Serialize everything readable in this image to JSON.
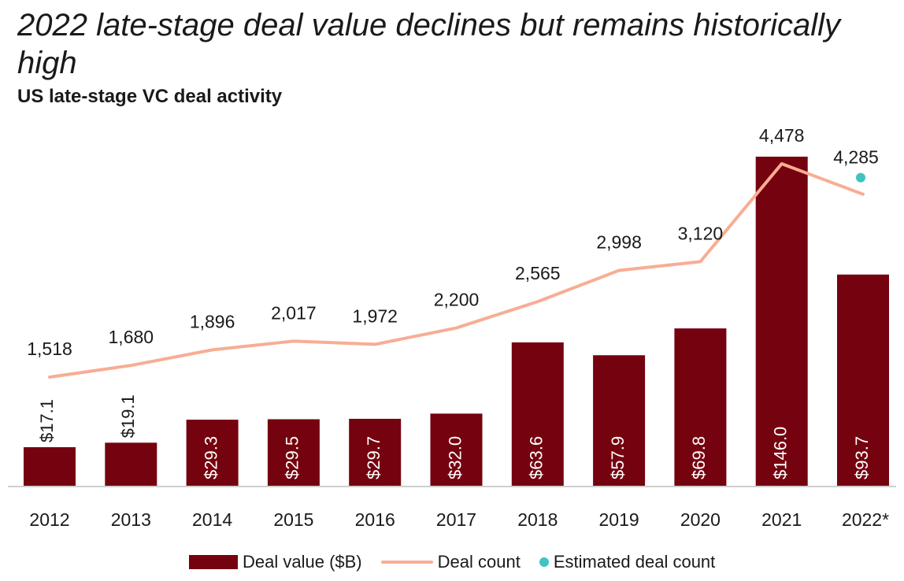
{
  "colors": {
    "bar": "#75020f",
    "line": "#f8ad94",
    "dot": "#3fc3c3",
    "axis": "#cfcfcf",
    "text": "#1a1a1a"
  },
  "chart_data": {
    "type": "bar",
    "title": "2022 late-stage deal value declines but remains historically high",
    "subtitle": "US late-stage VC deal activity",
    "xlabel": "",
    "ylabel": "",
    "categories": [
      "2012",
      "2013",
      "2014",
      "2015",
      "2016",
      "2017",
      "2018",
      "2019",
      "2020",
      "2021",
      "2022*"
    ],
    "series": [
      {
        "name": "Deal value ($B)",
        "type": "bar",
        "values": [
          17.1,
          19.1,
          29.3,
          29.5,
          29.7,
          32.0,
          63.6,
          57.9,
          69.8,
          146.0,
          93.7
        ],
        "labels": [
          "$17.1",
          "$19.1",
          "$29.3",
          "$29.5",
          "$29.7",
          "$32.0",
          "$63.6",
          "$57.9",
          "$69.8",
          "$146.0",
          "$93.7"
        ]
      },
      {
        "name": "Deal count",
        "type": "line",
        "values": [
          1518,
          1680,
          1896,
          2017,
          1972,
          2200,
          2565,
          2998,
          3120,
          4478,
          4055
        ],
        "labels": [
          "1,518",
          "1,680",
          "1,896",
          "2,017",
          "1,972",
          "2,200",
          "2,565",
          "2,998",
          "3,120",
          "4,478",
          ""
        ]
      },
      {
        "name": "Estimated deal count",
        "type": "scatter",
        "category": "2022*",
        "value": 4285,
        "label": "4,285"
      }
    ],
    "legend_position": "bottom",
    "grid": false
  }
}
